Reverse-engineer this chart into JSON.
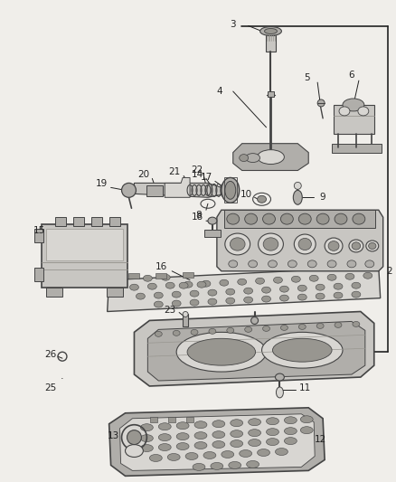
{
  "bg": "#f0eeea",
  "lc": "#444444",
  "bc": "#222222",
  "tc": "#222222",
  "fig_width": 4.39,
  "fig_height": 5.33,
  "dpi": 100
}
